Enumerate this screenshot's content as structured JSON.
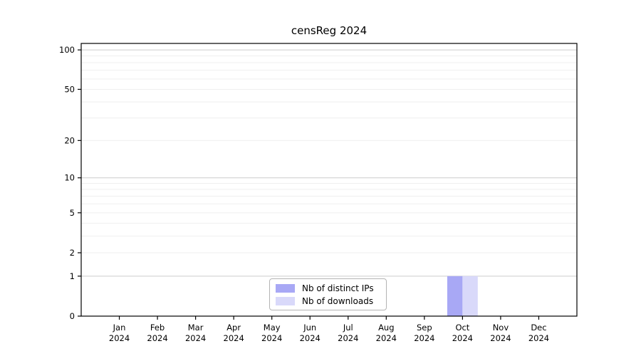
{
  "chart_data": {
    "type": "bar",
    "title": "censReg 2024",
    "xlabel": "",
    "ylabel": "",
    "categories": [
      "Jan",
      "Feb",
      "Mar",
      "Apr",
      "May",
      "Jun",
      "Jul",
      "Aug",
      "Sep",
      "Oct",
      "Nov",
      "Dec"
    ],
    "year_label": "2024",
    "series": [
      {
        "name": "Nb of distinct IPs",
        "color": "#a8a8f5",
        "values": [
          0,
          0,
          0,
          0,
          0,
          0,
          0,
          0,
          0,
          1,
          0,
          0
        ]
      },
      {
        "name": "Nb of downloads",
        "color": "#d9d9fa",
        "values": [
          0,
          0,
          0,
          0,
          0,
          0,
          0,
          0,
          0,
          1,
          0,
          0
        ]
      }
    ],
    "yscale": "log1p",
    "yticks": [
      0,
      1,
      2,
      5,
      10,
      20,
      50,
      100
    ],
    "ylim": [
      0,
      112
    ],
    "grid": "horizontal-log-minor",
    "legend_position": "lower-center",
    "colors": {
      "major_gridline": "#cccccc",
      "minor_gridline": "#efefef",
      "axis": "#000000"
    }
  }
}
